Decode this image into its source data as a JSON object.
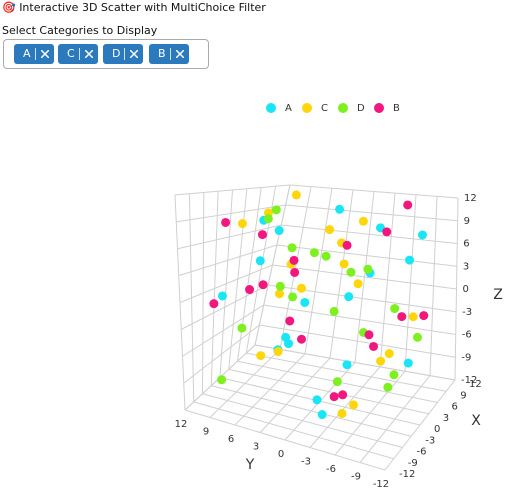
{
  "header": {
    "title": "🎯 Interactive 3D Scatter with MultiChoice Filter"
  },
  "filter": {
    "label": "Select Categories to Display",
    "selected": [
      "A",
      "C",
      "D",
      "B"
    ]
  },
  "chart_data": {
    "type": "scatter3d",
    "xlabel": "X",
    "ylabel": "Y",
    "zlabel": "Z",
    "xlim": [
      -12,
      12
    ],
    "ylim": [
      -12,
      12
    ],
    "zlim": [
      -12,
      12
    ],
    "xticks": [
      -12,
      -9,
      -6,
      -3,
      0,
      3,
      6,
      9,
      12
    ],
    "yticks": [
      -12,
      -9,
      -6,
      -3,
      0,
      3,
      6,
      9,
      12
    ],
    "zticks": [
      -12,
      -9,
      -6,
      -3,
      0,
      3,
      6,
      9,
      12
    ],
    "grid": true,
    "series": [
      {
        "name": "A",
        "color": "#19e6f5",
        "x": [
          8,
          -4,
          6,
          -9,
          2,
          10,
          -7,
          4,
          -2,
          9,
          -10,
          1,
          5,
          -6,
          7,
          -3,
          3,
          -8
        ],
        "y": [
          10,
          6,
          -4,
          2,
          9,
          -8,
          -2,
          4,
          -6,
          0,
          8,
          -10,
          1,
          -5,
          7,
          3,
          -9,
          -3
        ],
        "z": [
          6,
          9,
          8,
          -4,
          3,
          7,
          -9,
          -2,
          4,
          -11,
          1,
          -6,
          10,
          2,
          -8,
          -5,
          5,
          -10
        ]
      },
      {
        "name": "C",
        "color": "#ffd60a",
        "x": [
          9,
          -5,
          3,
          -8,
          6,
          0,
          -10,
          7,
          -3,
          10,
          2,
          -6,
          5,
          -1,
          8,
          -9,
          4,
          -4
        ],
        "y": [
          9,
          5,
          -3,
          1,
          8,
          -7,
          -1,
          3,
          -9,
          2,
          6,
          -6,
          -2,
          10,
          -8,
          4,
          0,
          -4
        ],
        "z": [
          11,
          10,
          9,
          5,
          -2,
          -6,
          3,
          7,
          -4,
          2,
          -8,
          -9,
          1,
          8,
          -3,
          -5,
          6,
          -11
        ]
      },
      {
        "name": "D",
        "color": "#7ff01f",
        "x": [
          -7,
          5,
          0,
          8,
          -3,
          -10,
          6,
          2,
          -5,
          9,
          -1,
          4,
          -8,
          7,
          1,
          -6,
          10,
          3
        ],
        "y": [
          7,
          10,
          -5,
          -2,
          3,
          0,
          8,
          -8,
          -3,
          4,
          6,
          -10,
          9,
          -6,
          2,
          -4,
          1,
          -7
        ],
        "z": [
          -3,
          8,
          4,
          -6,
          6,
          2,
          -1,
          -8,
          0,
          3,
          10,
          -4,
          -9,
          -2,
          5,
          -7,
          1,
          -10
        ]
      },
      {
        "name": "B",
        "color": "#f2167f",
        "x": [
          -9,
          4,
          7,
          -2,
          10,
          -6,
          1,
          8,
          -4,
          5,
          -10,
          3,
          -7,
          6,
          0,
          9,
          -5,
          2
        ],
        "y": [
          8,
          10,
          -7,
          3,
          -2,
          5,
          -9,
          1,
          -4,
          6,
          9,
          -6,
          0,
          -10,
          4,
          -3,
          7,
          -1
        ],
        "z": [
          9,
          6,
          11,
          3,
          -7,
          2,
          -1,
          5,
          -9,
          -5,
          0,
          8,
          -3,
          -2,
          4,
          -8,
          1,
          -12
        ]
      }
    ]
  }
}
